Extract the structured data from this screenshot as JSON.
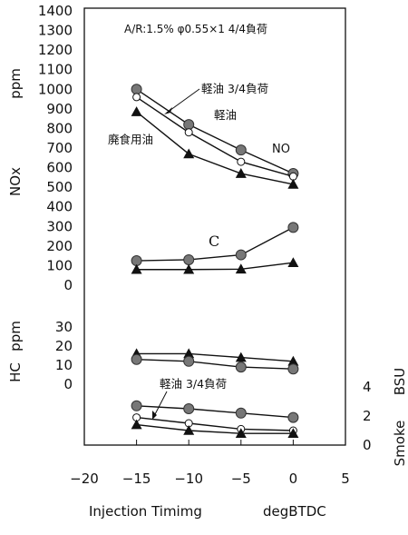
{
  "chart_data": {
    "type": "line",
    "condition_label": "A/R:1.5%  φ0.55×1   4/4負荷",
    "xlabel": "Injection Timimg",
    "xunit": "degBTDC",
    "xlim": [
      -20,
      5
    ],
    "xticks": [
      "−20",
      "−15",
      "−10",
      "−5",
      "0",
      "5"
    ],
    "x": [
      -15,
      -10,
      -5,
      0
    ],
    "panels": [
      {
        "id": "nox",
        "ylabel": "NOx",
        "yunit": "ppm",
        "ylim": [
          0,
          1400
        ],
        "yticks": [
          "0",
          "100",
          "200",
          "300",
          "400",
          "500",
          "600",
          "700",
          "800",
          "900",
          "1000",
          "1100",
          "1200",
          "1300",
          "1400"
        ],
        "series": [
          {
            "marker": "filled-circle",
            "values": [
              1000,
              820,
              690,
              570
            ]
          },
          {
            "marker": "open-circle",
            "values": [
              960,
              780,
              630,
              555
            ]
          },
          {
            "marker": "filled-triangle",
            "values": [
              885,
              670,
              570,
              515
            ]
          }
        ]
      },
      {
        "id": "c",
        "series": [
          {
            "marker": "filled-circle",
            "values": [
              125,
              130,
              155,
              295
            ]
          },
          {
            "marker": "filled-triangle",
            "values": [
              80,
              80,
              82,
              115
            ]
          }
        ]
      },
      {
        "id": "hc",
        "ylabel": "HC",
        "yunit": "ppm",
        "ylim": [
          0,
          30
        ],
        "yticks": [
          "0",
          "10",
          "20",
          "30"
        ],
        "series": [
          {
            "marker": "filled-triangle",
            "values": [
              16,
              16,
              14,
              12
            ]
          },
          {
            "marker": "filled-circle",
            "values": [
              13,
              12,
              9,
              8
            ]
          }
        ]
      },
      {
        "id": "smoke",
        "ylabel": "Smoke",
        "yunit": "BSU",
        "ylim": [
          0,
          4
        ],
        "yticks": [
          "0",
          "2",
          "4"
        ],
        "series": [
          {
            "marker": "filled-circle",
            "values": [
              2.7,
              2.5,
              2.2,
              1.9
            ]
          },
          {
            "marker": "open-circle",
            "values": [
              1.9,
              1.5,
              1.1,
              1.0
            ]
          },
          {
            "marker": "filled-triangle",
            "values": [
              1.4,
              1.0,
              0.8,
              0.8
            ]
          }
        ]
      }
    ],
    "annotations": {
      "nox_top": "軽油 3/4負荷",
      "nox_mid": "軽油",
      "nox_low": "廃食用油",
      "nox_no": "NO",
      "c_label": "C",
      "smoke_label": "軽油 3/4負荷"
    }
  }
}
